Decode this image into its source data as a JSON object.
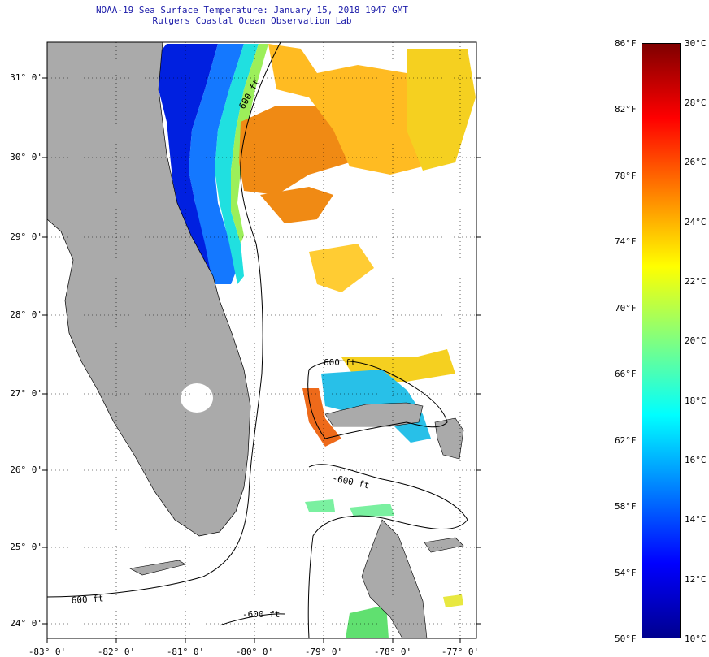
{
  "title": {
    "line1": "NOAA-19 Sea Surface Temperature:  January 15, 2018 1947 GMT",
    "line2": "Rutgers Coastal Ocean Observation Lab"
  },
  "axes": {
    "lon_ticks": [
      "-83° 0'",
      "-82° 0'",
      "-81° 0'",
      "-80° 0'",
      "-79° 0'",
      "-78° 0'",
      "-77° 0'"
    ],
    "lat_ticks": [
      "31° 0'",
      "30° 0'",
      "29° 0'",
      "28° 0'",
      "27° 0'",
      "26° 0'",
      "25° 0'",
      "24° 0'"
    ]
  },
  "contours": {
    "label": "600 ft",
    "label_alt": "-600 ft",
    "label_fragment": "600 ft"
  },
  "colorbar": {
    "fahrenheit": [
      "86°F",
      "82°F",
      "78°F",
      "74°F",
      "70°F",
      "66°F",
      "62°F",
      "58°F",
      "54°F",
      "50°F"
    ],
    "celsius": [
      "30°C",
      "28°C",
      "26°C",
      "24°C",
      "22°C",
      "20°C",
      "18°C",
      "16°C",
      "14°C",
      "12°C",
      "10°C"
    ]
  },
  "colors": {
    "land": "#aaaaaa",
    "title": "#1a1aa8",
    "scale": [
      "#7f0000",
      "#ff0000",
      "#ff8000",
      "#ffff00",
      "#80ff80",
      "#00ffff",
      "#0080ff",
      "#0000ff",
      "#00008f"
    ]
  }
}
